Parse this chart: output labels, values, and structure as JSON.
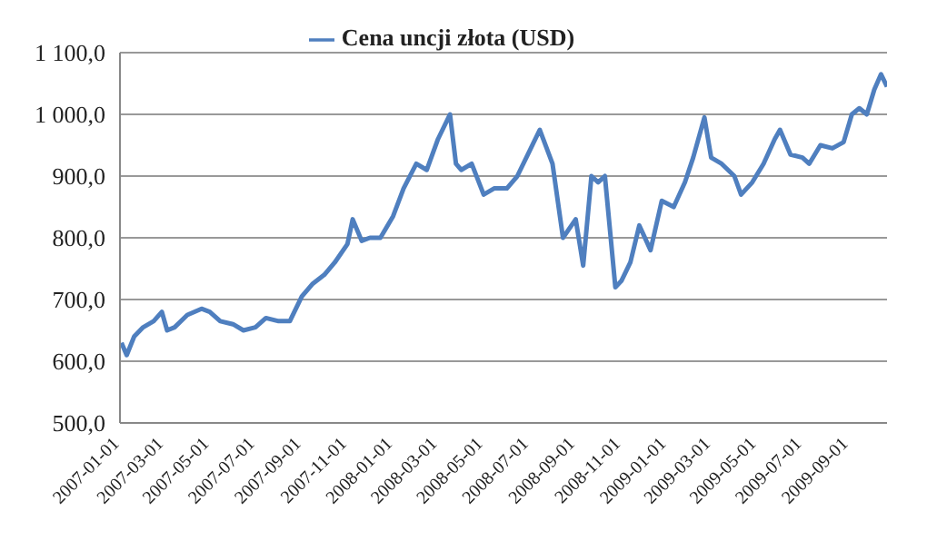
{
  "chart_data": {
    "type": "line",
    "x": [
      "2007-01-03",
      "2007-01-10",
      "2007-01-20",
      "2007-02-01",
      "2007-02-15",
      "2007-02-26",
      "2007-03-05",
      "2007-03-15",
      "2007-04-01",
      "2007-04-20",
      "2007-05-01",
      "2007-05-15",
      "2007-06-01",
      "2007-06-15",
      "2007-07-01",
      "2007-07-15",
      "2007-08-01",
      "2007-08-16",
      "2007-09-01",
      "2007-09-15",
      "2007-10-01",
      "2007-10-15",
      "2007-11-01",
      "2007-11-08",
      "2007-11-20",
      "2007-12-01",
      "2007-12-15",
      "2008-01-01",
      "2008-01-15",
      "2008-02-01",
      "2008-02-15",
      "2008-03-01",
      "2008-03-17",
      "2008-03-25",
      "2008-04-01",
      "2008-04-15",
      "2008-05-01",
      "2008-05-15",
      "2008-06-01",
      "2008-06-15",
      "2008-07-01",
      "2008-07-15",
      "2008-08-01",
      "2008-08-15",
      "2008-09-01",
      "2008-09-11",
      "2008-09-22",
      "2008-10-01",
      "2008-10-10",
      "2008-10-24",
      "2008-11-01",
      "2008-11-13",
      "2008-11-25",
      "2008-12-10",
      "2008-12-25",
      "2009-01-10",
      "2009-01-25",
      "2009-02-05",
      "2009-02-20",
      "2009-03-01",
      "2009-03-15",
      "2009-04-01",
      "2009-04-10",
      "2009-04-25",
      "2009-05-10",
      "2009-05-25",
      "2009-06-01",
      "2009-06-15",
      "2009-07-01",
      "2009-07-10",
      "2009-07-25",
      "2009-08-10",
      "2009-08-25",
      "2009-09-05",
      "2009-09-15",
      "2009-09-25",
      "2009-10-05",
      "2009-10-14",
      "2009-10-22"
    ],
    "series": [
      {
        "name": "Cena uncji złota (USD)",
        "color": "#4f7fbf",
        "values": [
          630,
          610,
          640,
          655,
          665,
          680,
          650,
          655,
          675,
          685,
          680,
          665,
          660,
          650,
          655,
          670,
          665,
          665,
          705,
          725,
          740,
          760,
          790,
          830,
          795,
          800,
          800,
          835,
          880,
          920,
          910,
          960,
          1000,
          920,
          910,
          920,
          870,
          880,
          880,
          900,
          940,
          975,
          920,
          800,
          830,
          755,
          900,
          890,
          900,
          720,
          730,
          760,
          820,
          780,
          860,
          850,
          890,
          930,
          995,
          930,
          920,
          900,
          870,
          890,
          920,
          960,
          975,
          935,
          930,
          920,
          950,
          945,
          955,
          1000,
          1010,
          1000,
          1040,
          1065,
          1045
        ]
      }
    ],
    "xlim": [
      "2007-01-01",
      "2009-10-22"
    ],
    "xticks": [
      "2007-01-01",
      "2007-03-01",
      "2007-05-01",
      "2007-07-01",
      "2007-09-01",
      "2007-11-01",
      "2008-01-01",
      "2008-03-01",
      "2008-05-01",
      "2008-07-01",
      "2008-09-01",
      "2008-11-01",
      "2009-01-01",
      "2009-03-01",
      "2009-05-01",
      "2009-07-01",
      "2009-09-01"
    ],
    "ylim": [
      500,
      1100
    ],
    "yticks": [
      {
        "value": 500,
        "label": "500,0"
      },
      {
        "value": 600,
        "label": "600,0"
      },
      {
        "value": 700,
        "label": "700,0"
      },
      {
        "value": 800,
        "label": "800,0"
      },
      {
        "value": 900,
        "label": "900,0"
      },
      {
        "value": 1000,
        "label": "1 000,0"
      },
      {
        "value": 1100,
        "label": "1 100,0"
      }
    ],
    "grid": "y",
    "legend": "top",
    "marker": "none",
    "line_style": "solid"
  }
}
